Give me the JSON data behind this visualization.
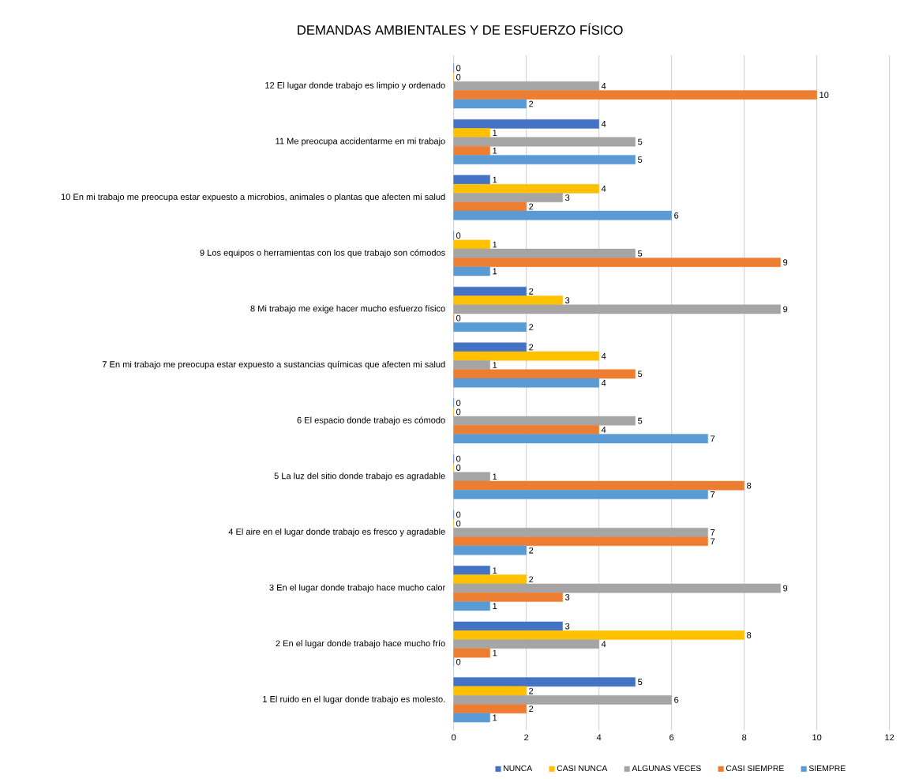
{
  "chart_data": {
    "type": "bar",
    "orientation": "horizontal",
    "title": "DEMANDAS AMBIENTALES Y DE ESFUERZO FÍSICO",
    "categories": [
      "12 El lugar donde trabajo es limpio y ordenado",
      "11 Me preocupa accidentarme en mi trabajo",
      "10 En mi trabajo me preocupa estar expuesto a microbios, animales o plantas que afecten mi salud",
      "9 Los equipos o herramientas con los que trabajo son cómodos",
      "8 Mi trabajo me exige hacer mucho esfuerzo físico",
      "7 En mi trabajo me preocupa estar expuesto a sustancias químicas que afecten mi salud",
      "6 El espacio donde trabajo es cómodo",
      "5 La luz del sitio donde trabajo es agradable",
      "4 El aire en el lugar donde trabajo es fresco y agradable",
      "3 En el lugar donde trabajo hace mucho calor",
      "2 En el lugar donde trabajo hace mucho frío",
      "1 El ruido en el lugar donde trabajo es molesto."
    ],
    "series": [
      {
        "name": "NUNCA",
        "color": "#4472c4",
        "values": [
          0,
          4,
          1,
          0,
          2,
          2,
          0,
          0,
          0,
          1,
          3,
          5
        ]
      },
      {
        "name": "CASI NUNCA",
        "color": "#ffc000",
        "values": [
          0,
          1,
          4,
          1,
          3,
          4,
          0,
          0,
          0,
          2,
          8,
          2
        ]
      },
      {
        "name": "ALGUNAS VECES",
        "color": "#a5a5a5",
        "values": [
          4,
          5,
          3,
          5,
          9,
          1,
          5,
          1,
          7,
          9,
          4,
          6
        ]
      },
      {
        "name": "CASI SIEMPRE",
        "color": "#ed7d31",
        "values": [
          10,
          1,
          2,
          9,
          0,
          5,
          4,
          8,
          7,
          3,
          1,
          2
        ]
      },
      {
        "name": "SIEMPRE",
        "color": "#5b9bd5",
        "values": [
          2,
          5,
          6,
          1,
          2,
          4,
          7,
          7,
          2,
          1,
          0,
          1
        ]
      }
    ],
    "xlim": [
      0,
      12
    ],
    "xticks": [
      0,
      2,
      4,
      6,
      8,
      10,
      12
    ],
    "grid": "x",
    "legend": "bottom",
    "data_labels": true
  }
}
